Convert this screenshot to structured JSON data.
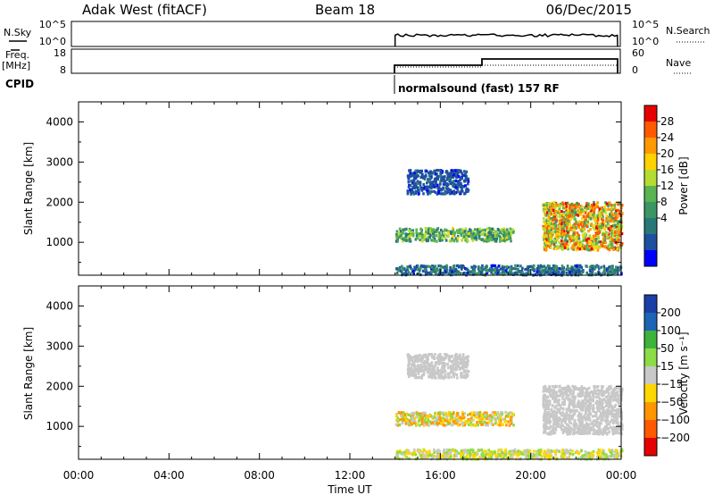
{
  "title": {
    "station": "Adak West (fitACF)",
    "beam": "Beam 18",
    "date": "06/Dec/2015"
  },
  "top_panels": {
    "nsky_label": "N.Sky",
    "nsky_ticks": [
      "10^5",
      "10^0"
    ],
    "nsearch_label": "N.Search",
    "nsearch_ticks": [
      "10^5",
      "10^0"
    ],
    "freq_label": "Freq.",
    "freq_unit": "[MHz]",
    "freq_ticks": [
      "18",
      "8"
    ],
    "nave_label": "Nave",
    "nave_ticks": [
      "60",
      "0"
    ],
    "cpid_label": "CPID",
    "cpid_text": "normalsound (fast) 157 RF"
  },
  "chart_data": {
    "type": "heatmap",
    "xlabel": "Time UT",
    "x_ticks": [
      "00:00",
      "04:00",
      "08:00",
      "12:00",
      "16:00",
      "20:00",
      "00:00"
    ],
    "xlim_hours": [
      0,
      24
    ],
    "data_start_hour": 14,
    "panels": [
      {
        "name": "power",
        "ylabel": "Slant Range [km]",
        "ylim": [
          180,
          4500
        ],
        "y_ticks": [
          1000,
          2000,
          3000,
          4000
        ],
        "colorbar_label": "Power [dB]",
        "colorbar_ticks": [
          "28",
          "24",
          "20",
          "16",
          "12",
          "8",
          "4"
        ],
        "colorbar_colors": [
          "#e60000",
          "#ff5a00",
          "#ff9900",
          "#ffd200",
          "#b4dc32",
          "#5ab450",
          "#3c9664",
          "#287878",
          "#1e50a0",
          "#0000ff"
        ]
      },
      {
        "name": "velocity",
        "ylabel": "Slant Range [km]",
        "ylim": [
          180,
          4500
        ],
        "y_ticks": [
          1000,
          2000,
          3000,
          4000
        ],
        "colorbar_label": "Velocity [m s⁻¹]",
        "colorbar_ticks": [
          "200",
          "100",
          "50",
          "15",
          "−15",
          "−50",
          "−100",
          "−200"
        ],
        "colorbar_colors": [
          "#1a3fa5",
          "#1e64b4",
          "#3cb43c",
          "#8cdc46",
          "#c8c8c8",
          "#ffd700",
          "#ff9600",
          "#ff5a00",
          "#e60000"
        ]
      }
    ],
    "echo_features": [
      {
        "feature": "ground scatter band",
        "start_hour": 14,
        "end_hour": 19.2,
        "range_km": [
          1020,
          1350
        ],
        "power_db": [
          8,
          20
        ],
        "velocity_ms": [
          -100,
          50
        ]
      },
      {
        "feature": "upper scatter",
        "start_hour": 14.5,
        "end_hour": 17.2,
        "range_km": [
          2200,
          2800
        ],
        "power_db": [
          4,
          8
        ],
        "velocity_ms": [
          -15,
          15
        ]
      },
      {
        "feature": "near range clutter",
        "start_hour": 14,
        "end_hour": 24,
        "range_km": [
          180,
          420
        ],
        "power_db": [
          4,
          12
        ],
        "velocity_ms": [
          -50,
          50
        ]
      },
      {
        "feature": "late ionospheric echo",
        "start_hour": 20.5,
        "end_hour": 24,
        "range_km": [
          800,
          2000
        ],
        "power_db": [
          12,
          30
        ],
        "velocity_ms": [
          -15,
          15
        ]
      }
    ]
  },
  "colors": {
    "axis": "#000000",
    "background": "#ffffff"
  }
}
